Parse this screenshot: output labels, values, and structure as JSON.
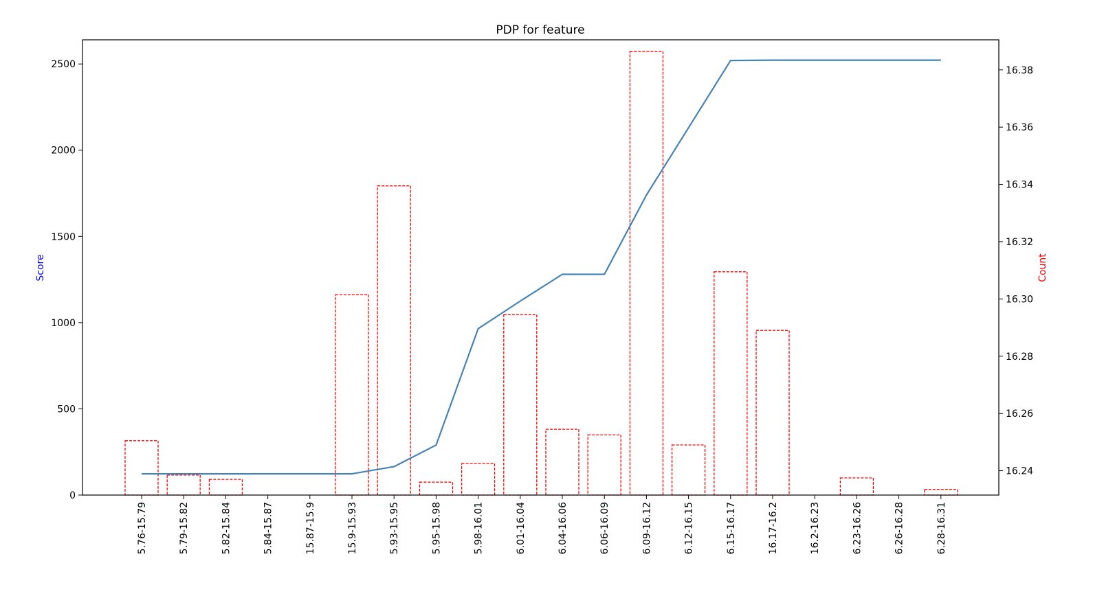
{
  "chart_data": {
    "type": "bar",
    "title": "PDP for feature",
    "xlabel": "",
    "ylabel": "Score",
    "y2label": "Count",
    "ylim": [
      0,
      2640
    ],
    "y2lim": [
      16.2315,
      16.3905
    ],
    "yticks": [
      0,
      500,
      1000,
      1500,
      2000,
      2500
    ],
    "y2ticks": [
      "16.24",
      "16.26",
      "16.28",
      "16.30",
      "16.32",
      "16.34",
      "16.36",
      "16.38"
    ],
    "categories": [
      "5.76-15.79",
      "5.79-15.82",
      "5.82-15.84",
      "5.84-15.87",
      "15.87-15.9",
      "15.9-15.93",
      "5.93-15.95",
      "5.95-15.98",
      "5.98-16.01",
      "6.01-16.04",
      "6.04-16.06",
      "6.06-16.09",
      "6.09-16.12",
      "6.12-16.15",
      "6.15-16.17",
      "16.17-16.2",
      "16.2-16.23",
      "6.23-16.26",
      "6.26-16.28",
      "6.28-16.31"
    ],
    "series": [
      {
        "name": "Score",
        "kind": "line",
        "axis": "left",
        "color": "#4682b4",
        "values": [
          123,
          123,
          123,
          123,
          123,
          123,
          165,
          290,
          965,
          1125,
          1280,
          1280,
          1740,
          2130,
          2520,
          2522,
          2522,
          2522,
          2522,
          2522
        ]
      },
      {
        "name": "Count",
        "kind": "bar",
        "axis": "right",
        "color": "#ff0000",
        "style": "dashed-outline",
        "values": [
          16.2505,
          16.2385,
          16.237,
          null,
          null,
          16.3015,
          16.3395,
          16.236,
          16.2425,
          16.2945,
          16.2545,
          16.2525,
          16.3865,
          16.249,
          16.3095,
          16.289,
          null,
          16.2375,
          null,
          16.2335
        ]
      }
    ],
    "grid": false,
    "legend": "none",
    "colors": {
      "ylabel": "#0000ff",
      "y2label": "#ff0000"
    }
  }
}
